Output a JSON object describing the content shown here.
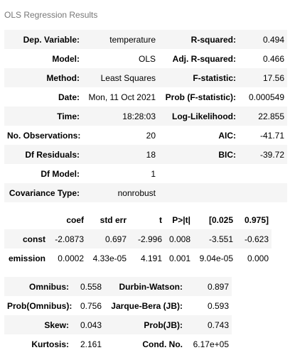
{
  "caption": "OLS Regression Results",
  "summary": {
    "rows": [
      [
        "Dep. Variable:",
        "temperature",
        "R-squared:",
        "0.494"
      ],
      [
        "Model:",
        "OLS",
        "Adj. R-squared:",
        "0.466"
      ],
      [
        "Method:",
        "Least Squares",
        "F-statistic:",
        "17.56"
      ],
      [
        "Date:",
        "Mon, 11 Oct 2021",
        "Prob (F-statistic):",
        "0.000549"
      ],
      [
        "Time:",
        "18:28:03",
        "Log-Likelihood:",
        "22.855"
      ],
      [
        "No. Observations:",
        "20",
        "AIC:",
        "-41.71"
      ],
      [
        "Df Residuals:",
        "18",
        "BIC:",
        "-39.72"
      ],
      [
        "Df Model:",
        "1",
        "",
        ""
      ],
      [
        "Covariance Type:",
        "nonrobust",
        "",
        ""
      ]
    ]
  },
  "coefficients": {
    "headers": [
      "",
      "coef",
      "std err",
      "t",
      "P>|t|",
      "[0.025",
      "0.975]"
    ],
    "rows": [
      [
        "const",
        "-2.0873",
        "0.697",
        "-2.996",
        "0.008",
        "-3.551",
        "-0.623"
      ],
      [
        "emission",
        "0.0002",
        "4.33e-05",
        "4.191",
        "0.001",
        "9.04e-05",
        "0.000"
      ]
    ]
  },
  "diagnostics": {
    "rows": [
      [
        "Omnibus:",
        "0.558",
        "Durbin-Watson:",
        "0.897"
      ],
      [
        "Prob(Omnibus):",
        "0.756",
        "Jarque-Bera (JB):",
        "0.593"
      ],
      [
        "Skew:",
        "0.043",
        "Prob(JB):",
        "0.743"
      ],
      [
        "Kurtosis:",
        "2.161",
        "Cond. No.",
        "6.17e+05"
      ]
    ]
  }
}
